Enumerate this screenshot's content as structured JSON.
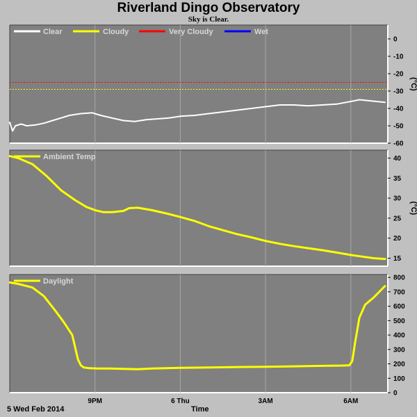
{
  "page": {
    "title": "Riverland Dingo Observatory",
    "subtitle": "Sky is Clear.",
    "date_label": "5 Wed Feb 2014",
    "time_label": "Time"
  },
  "chart_data": [
    {
      "type": "line",
      "title": "",
      "ylabel": "(°C)",
      "ylim": [
        -60,
        8
      ],
      "yticks": [
        0,
        -10,
        -20,
        -30,
        -40,
        -50,
        -60
      ],
      "grid": true,
      "legend_position": "top-left",
      "legend": [
        {
          "name": "Clear",
          "color": "#ffffff"
        },
        {
          "name": "Cloudy",
          "color": "#ffff00"
        },
        {
          "name": "Very Cloudy",
          "color": "#ff0000"
        },
        {
          "name": "Wet",
          "color": "#0000ff"
        }
      ],
      "thresholds": [
        {
          "name": "Very Cloudy",
          "value": -25,
          "color": "#ff0000"
        },
        {
          "name": "Cloudy",
          "value": -29,
          "color": "#ffff00"
        }
      ],
      "series": [
        {
          "name": "Clear",
          "color": "#ffffff",
          "x_hours": [
            18.0,
            18.1,
            18.2,
            18.4,
            18.6,
            18.9,
            19.2,
            19.5,
            19.8,
            20.1,
            20.5,
            20.9,
            21.2,
            21.6,
            22.0,
            22.4,
            22.8,
            23.2,
            23.6,
            24.0,
            24.5,
            25.0,
            25.5,
            26.0,
            26.5,
            27.0,
            27.5,
            28.0,
            28.5,
            29.0,
            29.5,
            30.0,
            30.3,
            30.6,
            30.9,
            31.2
          ],
          "values": [
            -48,
            -53,
            -50,
            -49,
            -50,
            -49.5,
            -48.5,
            -47,
            -45.5,
            -44,
            -43,
            -42.5,
            -44,
            -45.5,
            -47,
            -47.5,
            -46.5,
            -46,
            -45.5,
            -44.5,
            -44,
            -43,
            -42,
            -41,
            -40,
            -39,
            -38,
            -38,
            -38.5,
            -38,
            -37.5,
            -36,
            -35,
            -35.5,
            -36,
            -36.5
          ]
        }
      ]
    },
    {
      "type": "line",
      "title": "",
      "ylabel": "(°C)",
      "ylim": [
        13,
        42
      ],
      "yticks": [
        15,
        20,
        25,
        30,
        35,
        40
      ],
      "grid": true,
      "legend_position": "top-left",
      "legend": [
        {
          "name": "Ambient Temp",
          "color": "#ffff00"
        }
      ],
      "series": [
        {
          "name": "Ambient Temp",
          "color": "#ffff00",
          "x_hours": [
            18.0,
            18.3,
            18.8,
            19.3,
            19.8,
            20.3,
            20.7,
            21.0,
            21.3,
            21.6,
            22.0,
            22.2,
            22.5,
            23.0,
            23.5,
            24.0,
            24.5,
            25.0,
            25.5,
            26.0,
            26.5,
            27.0,
            27.5,
            28.0,
            28.5,
            29.0,
            29.5,
            30.0,
            30.4,
            30.8,
            31.2
          ],
          "values": [
            40.5,
            40,
            38.5,
            35.5,
            32,
            29.5,
            27.8,
            27,
            26.5,
            26.5,
            26.8,
            27.5,
            27.6,
            27,
            26.2,
            25.3,
            24.3,
            23,
            22,
            21,
            20.2,
            19.3,
            18.6,
            18,
            17.5,
            17,
            16.4,
            15.8,
            15.4,
            15,
            14.8
          ]
        }
      ]
    },
    {
      "type": "line",
      "title": "",
      "ylabel": "",
      "ylim": [
        0,
        820
      ],
      "yticks": [
        0,
        100,
        200,
        300,
        400,
        500,
        600,
        700,
        800
      ],
      "grid": true,
      "legend_position": "top-left",
      "legend": [
        {
          "name": "Daylight",
          "color": "#ffff00"
        }
      ],
      "x_tick_labels": [
        "9PM",
        "6 Thu",
        "3AM",
        "6AM"
      ],
      "x_tick_hours": [
        21,
        24,
        27,
        30
      ],
      "series": [
        {
          "name": "Daylight",
          "color": "#ffff00",
          "x_hours": [
            18.0,
            18.3,
            18.8,
            19.2,
            19.6,
            19.9,
            20.2,
            20.4,
            20.5,
            20.6,
            20.8,
            21.1,
            21.5,
            22.0,
            22.5,
            23.0,
            24.0,
            25.0,
            26.0,
            27.0,
            28.0,
            29.0,
            29.7,
            29.95,
            30.05,
            30.15,
            30.3,
            30.5,
            30.8,
            31.0,
            31.1,
            31.2
          ],
          "values": [
            765,
            755,
            730,
            670,
            570,
            490,
            400,
            230,
            190,
            175,
            170,
            168,
            168,
            165,
            163,
            168,
            172,
            175,
            178,
            180,
            183,
            186,
            188,
            190,
            220,
            350,
            520,
            610,
            660,
            700,
            720,
            740
          ]
        }
      ]
    }
  ]
}
